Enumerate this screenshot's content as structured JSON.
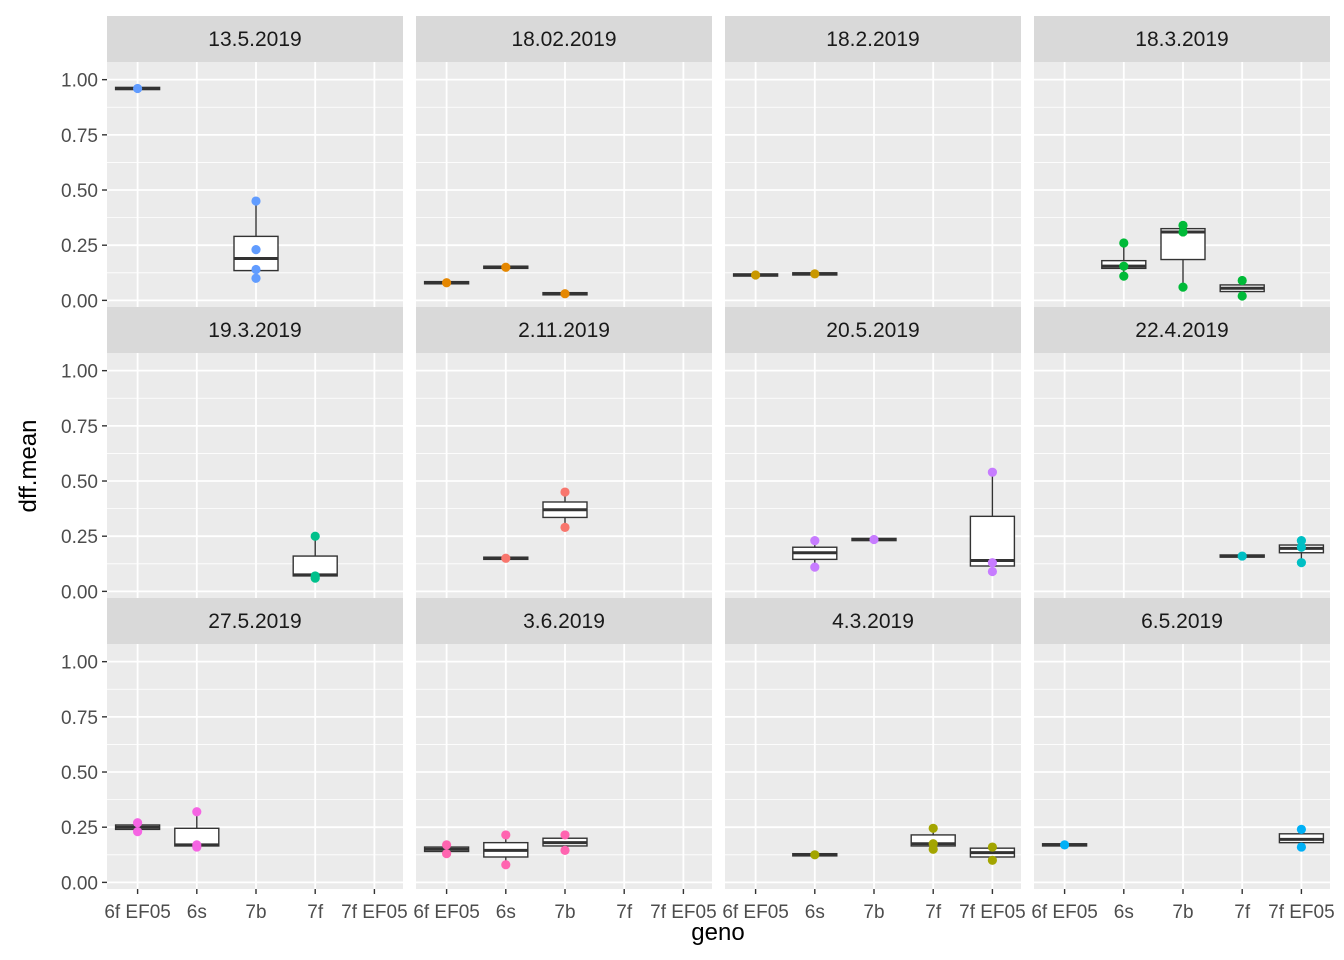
{
  "chart_data": {
    "type": "box",
    "xlabel": "geno",
    "ylabel": "dff.mean",
    "x_categories": [
      "6f EF05",
      "6s",
      "7b",
      "7f",
      "7f EF05"
    ],
    "ylim": [
      -0.03,
      1.08
    ],
    "y_ticks": [
      "0.00",
      "0.25",
      "0.50",
      "0.75",
      "1.00"
    ],
    "grid": true,
    "legend": "none",
    "facets": [
      {
        "title": "13.5.2019",
        "color": "#619CFF",
        "boxes": [
          {
            "geno": "6f EF05",
            "q1": 0.955,
            "median": 0.96,
            "q3": 0.965,
            "lower": 0.955,
            "upper": 0.965,
            "points": [
              0.96
            ]
          },
          {
            "geno": "7b",
            "q1": 0.135,
            "median": 0.19,
            "q3": 0.29,
            "lower": 0.1,
            "upper": 0.45,
            "points": [
              0.1,
              0.14,
              0.23,
              0.45
            ]
          }
        ]
      },
      {
        "title": "18.02.2019",
        "color": "#E58700",
        "boxes": [
          {
            "geno": "6f EF05",
            "q1": 0.075,
            "median": 0.08,
            "q3": 0.085,
            "lower": 0.075,
            "upper": 0.085,
            "points": [
              0.08
            ]
          },
          {
            "geno": "6s",
            "q1": 0.145,
            "median": 0.15,
            "q3": 0.155,
            "lower": 0.145,
            "upper": 0.155,
            "points": [
              0.15
            ]
          },
          {
            "geno": "7b",
            "q1": 0.025,
            "median": 0.03,
            "q3": 0.035,
            "lower": 0.025,
            "upper": 0.035,
            "points": [
              0.03
            ]
          }
        ]
      },
      {
        "title": "18.2.2019",
        "color": "#C99800",
        "boxes": [
          {
            "geno": "6f EF05",
            "q1": 0.11,
            "median": 0.115,
            "q3": 0.12,
            "lower": 0.11,
            "upper": 0.12,
            "points": [
              0.115
            ]
          },
          {
            "geno": "6s",
            "q1": 0.115,
            "median": 0.12,
            "q3": 0.125,
            "lower": 0.115,
            "upper": 0.125,
            "points": [
              0.12
            ]
          }
        ]
      },
      {
        "title": "18.3.2019",
        "color": "#00BA38",
        "boxes": [
          {
            "geno": "6s",
            "q1": 0.145,
            "median": 0.155,
            "q3": 0.18,
            "lower": 0.11,
            "upper": 0.26,
            "points": [
              0.11,
              0.155,
              0.26
            ]
          },
          {
            "geno": "7b",
            "q1": 0.185,
            "median": 0.31,
            "q3": 0.325,
            "lower": 0.06,
            "upper": 0.34,
            "points": [
              0.06,
              0.31,
              0.34
            ]
          },
          {
            "geno": "7f",
            "q1": 0.04,
            "median": 0.055,
            "q3": 0.07,
            "lower": 0.02,
            "upper": 0.09,
            "points": [
              0.02,
              0.09
            ]
          }
        ]
      },
      {
        "title": "19.3.2019",
        "color": "#00C08B",
        "boxes": [
          {
            "geno": "7f",
            "q1": 0.07,
            "median": 0.075,
            "q3": 0.16,
            "lower": 0.06,
            "upper": 0.25,
            "points": [
              0.06,
              0.07,
              0.25
            ]
          }
        ]
      },
      {
        "title": "2.11.2019",
        "color": "#F8766D",
        "boxes": [
          {
            "geno": "6s",
            "q1": 0.145,
            "median": 0.15,
            "q3": 0.155,
            "lower": 0.145,
            "upper": 0.155,
            "points": [
              0.15
            ]
          },
          {
            "geno": "7b",
            "q1": 0.335,
            "median": 0.37,
            "q3": 0.405,
            "lower": 0.29,
            "upper": 0.45,
            "points": [
              0.29,
              0.45
            ]
          }
        ]
      },
      {
        "title": "20.5.2019",
        "color": "#C77CFF",
        "boxes": [
          {
            "geno": "6s",
            "q1": 0.145,
            "median": 0.175,
            "q3": 0.2,
            "lower": 0.11,
            "upper": 0.23,
            "points": [
              0.11,
              0.23
            ]
          },
          {
            "geno": "7b",
            "q1": 0.23,
            "median": 0.235,
            "q3": 0.24,
            "lower": 0.23,
            "upper": 0.24,
            "points": [
              0.235
            ]
          },
          {
            "geno": "7f EF05",
            "q1": 0.115,
            "median": 0.14,
            "q3": 0.34,
            "lower": 0.09,
            "upper": 0.54,
            "points": [
              0.09,
              0.13,
              0.54
            ]
          }
        ]
      },
      {
        "title": "22.4.2019",
        "color": "#00BFC4",
        "boxes": [
          {
            "geno": "7f",
            "q1": 0.155,
            "median": 0.16,
            "q3": 0.165,
            "lower": 0.155,
            "upper": 0.165,
            "points": [
              0.16
            ]
          },
          {
            "geno": "7f EF05",
            "q1": 0.175,
            "median": 0.195,
            "q3": 0.21,
            "lower": 0.13,
            "upper": 0.23,
            "points": [
              0.13,
              0.2,
              0.23
            ]
          }
        ]
      },
      {
        "title": "27.5.2019",
        "color": "#F564E3",
        "boxes": [
          {
            "geno": "6f EF05",
            "q1": 0.24,
            "median": 0.25,
            "q3": 0.26,
            "lower": 0.23,
            "upper": 0.27,
            "points": [
              0.23,
              0.27
            ]
          },
          {
            "geno": "6s",
            "q1": 0.165,
            "median": 0.17,
            "q3": 0.245,
            "lower": 0.16,
            "upper": 0.32,
            "points": [
              0.16,
              0.17,
              0.32
            ]
          }
        ]
      },
      {
        "title": "3.6.2019",
        "color": "#FF64B0",
        "boxes": [
          {
            "geno": "6f EF05",
            "q1": 0.14,
            "median": 0.15,
            "q3": 0.16,
            "lower": 0.13,
            "upper": 0.17,
            "points": [
              0.13,
              0.17
            ]
          },
          {
            "geno": "6s",
            "q1": 0.115,
            "median": 0.145,
            "q3": 0.18,
            "lower": 0.08,
            "upper": 0.215,
            "points": [
              0.08,
              0.215
            ]
          },
          {
            "geno": "7b",
            "q1": 0.165,
            "median": 0.18,
            "q3": 0.2,
            "lower": 0.145,
            "upper": 0.215,
            "points": [
              0.145,
              0.215
            ]
          }
        ]
      },
      {
        "title": "4.3.2019",
        "color": "#A3A500",
        "boxes": [
          {
            "geno": "6s",
            "q1": 0.12,
            "median": 0.125,
            "q3": 0.13,
            "lower": 0.12,
            "upper": 0.13,
            "points": [
              0.125
            ]
          },
          {
            "geno": "7f",
            "q1": 0.165,
            "median": 0.175,
            "q3": 0.215,
            "lower": 0.15,
            "upper": 0.245,
            "points": [
              0.15,
              0.175,
              0.245
            ]
          },
          {
            "geno": "7f EF05",
            "q1": 0.115,
            "median": 0.135,
            "q3": 0.155,
            "lower": 0.1,
            "upper": 0.165,
            "points": [
              0.1,
              0.16
            ]
          }
        ]
      },
      {
        "title": "6.5.2019",
        "color": "#00B0F6",
        "boxes": [
          {
            "geno": "6f EF05",
            "q1": 0.165,
            "median": 0.17,
            "q3": 0.175,
            "lower": 0.165,
            "upper": 0.175,
            "points": [
              0.17
            ]
          },
          {
            "geno": "7f EF05",
            "q1": 0.18,
            "median": 0.195,
            "q3": 0.22,
            "lower": 0.16,
            "upper": 0.24,
            "points": [
              0.16,
              0.24
            ]
          }
        ]
      }
    ]
  }
}
